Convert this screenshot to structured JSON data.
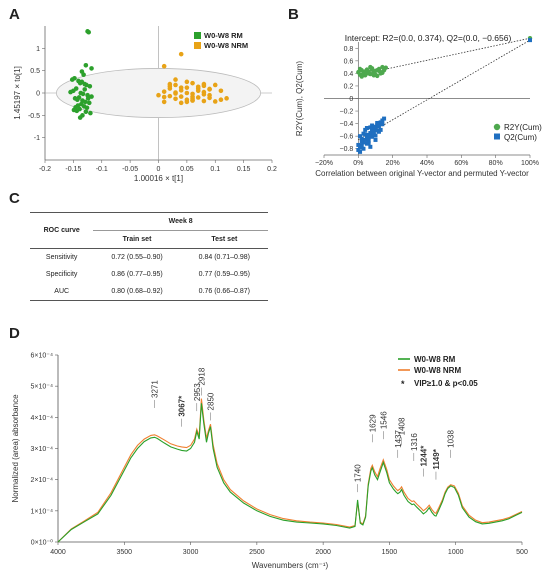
{
  "panel_letters": {
    "a": "A",
    "b": "B",
    "c": "C",
    "d": "D"
  },
  "colors": {
    "rm": "#2ca02c",
    "nrm": "#e8a317",
    "r2": "#4ea84e",
    "q2": "#1f6fc0",
    "ftir_rm": "#2aa02a",
    "ftir_nrm": "#ef7f2f"
  },
  "chart_data": [
    {
      "id": "A",
      "type": "scatter",
      "xlabel": "1.00016 × t[1]",
      "ylabel": "1.45197 × to[1]",
      "xlim": [
        -0.2,
        0.2
      ],
      "ylim": [
        -1.5,
        1.5
      ],
      "xticks": [
        "-0.2",
        "-0.15",
        "-0.1",
        "-0.05",
        "0",
        "0.05",
        "0.1",
        "0.15",
        "0.2"
      ],
      "yticks": [
        "-1",
        "-0.5",
        "0",
        "0.5",
        "1"
      ],
      "legend": "top-right",
      "series": [
        {
          "name": "W0-W8 RM",
          "color": "#2ca02c",
          "x": [
            -0.125,
            -0.123,
            -0.128,
            -0.118,
            -0.135,
            -0.132,
            -0.148,
            -0.152,
            -0.141,
            -0.138,
            -0.13,
            -0.127,
            -0.121,
            -0.145,
            -0.15,
            -0.155,
            -0.137,
            -0.133,
            -0.125,
            -0.118,
            -0.14,
            -0.147,
            -0.143,
            -0.134,
            -0.129,
            -0.122,
            -0.136,
            -0.142,
            -0.131,
            -0.126,
            -0.139,
            -0.149,
            -0.144,
            -0.128,
            -0.12,
            -0.134,
            -0.138,
            -0.146,
            -0.124,
            -0.13,
            -0.135
          ],
          "y": [
            1.38,
            1.36,
            0.62,
            0.55,
            0.48,
            0.41,
            0.33,
            0.3,
            0.27,
            0.22,
            0.2,
            0.18,
            0.15,
            0.1,
            0.05,
            0.02,
            0.0,
            -0.02,
            -0.05,
            -0.08,
            -0.1,
            -0.12,
            -0.15,
            -0.17,
            -0.2,
            -0.22,
            -0.25,
            -0.28,
            -0.3,
            -0.33,
            -0.36,
            -0.38,
            -0.4,
            -0.42,
            -0.45,
            -0.5,
            -0.55,
            -0.32,
            -0.12,
            0.08,
            0.25
          ]
        },
        {
          "name": "W0-W8 NRM",
          "color": "#e8a317",
          "x": [
            0.04,
            0.01,
            0.03,
            0.05,
            0.06,
            0.08,
            0.1,
            0.02,
            0.04,
            0.07,
            0.09,
            0.11,
            0.01,
            0.03,
            0.05,
            0.06,
            0.08,
            0.0,
            0.02,
            0.04,
            0.07,
            0.09,
            0.12,
            0.03,
            0.05,
            0.06,
            0.08,
            0.1,
            0.01,
            0.04,
            0.02,
            0.07,
            0.09,
            0.05,
            0.06,
            0.03,
            0.08,
            0.11,
            0.04,
            0.06,
            0.02,
            0.07,
            0.05,
            0.09,
            0.03,
            0.01,
            0.08,
            0.06
          ],
          "y": [
            0.87,
            0.6,
            0.3,
            0.25,
            0.22,
            0.2,
            0.18,
            0.15,
            0.12,
            0.1,
            0.08,
            0.05,
            0.03,
            0.01,
            0.0,
            -0.02,
            -0.03,
            -0.05,
            -0.07,
            -0.08,
            -0.1,
            -0.11,
            -0.12,
            -0.13,
            -0.15,
            -0.17,
            -0.18,
            -0.19,
            -0.2,
            -0.22,
            0.1,
            0.05,
            -0.05,
            0.12,
            -0.08,
            0.18,
            0.02,
            -0.15,
            0.06,
            -0.12,
            0.2,
            0.14,
            -0.2,
            0.09,
            -0.01,
            -0.09,
            0.16,
            -0.16
          ]
        }
      ]
    },
    {
      "id": "B",
      "type": "scatter",
      "title": "Intercept: R2=(0.0, 0.374), Q2=(0.0, −0.656)",
      "xlabel": "Correlation between original Y-vector and permuted Y-vector",
      "ylabel": "R2Y(Cum), Q2(Cum)",
      "xlim": [
        -0.2,
        1.0
      ],
      "ylim": [
        -0.9,
        0.9
      ],
      "xticks": [
        "−20%",
        "0%",
        "20%",
        "40%",
        "60%",
        "80%",
        "100%"
      ],
      "yticks": [
        "−0.8",
        "−0.6",
        "−0.4",
        "−0.2",
        "0",
        "0.2",
        "0.4",
        "0.6",
        "0.8"
      ],
      "legend": "bottom-right",
      "series": [
        {
          "name": "R2Y(Cum)",
          "color": "#4ea84e",
          "x": [
            0.0,
            0.01,
            0.02,
            0.03,
            0.04,
            0.05,
            0.06,
            0.07,
            0.08,
            0.09,
            0.1,
            0.11,
            0.12,
            0.13,
            0.14,
            0.15,
            0.16,
            0.02,
            0.04,
            0.06,
            0.08,
            0.1,
            0.12,
            0.14,
            0.01,
            0.03,
            0.05,
            0.07,
            0.09,
            0.11,
            0.13,
            1.0
          ],
          "y": [
            0.42,
            0.38,
            0.45,
            0.4,
            0.37,
            0.46,
            0.43,
            0.39,
            0.48,
            0.41,
            0.44,
            0.36,
            0.47,
            0.42,
            0.5,
            0.45,
            0.49,
            0.35,
            0.43,
            0.4,
            0.46,
            0.38,
            0.44,
            0.41,
            0.47,
            0.39,
            0.42,
            0.5,
            0.37,
            0.45,
            0.4,
            0.96
          ]
        },
        {
          "name": "Q2(Cum)",
          "color": "#1f6fc0",
          "x": [
            0.0,
            0.01,
            0.02,
            0.03,
            0.04,
            0.05,
            0.06,
            0.07,
            0.08,
            0.09,
            0.1,
            0.11,
            0.12,
            0.13,
            0.14,
            0.15,
            0.01,
            0.02,
            0.03,
            0.04,
            0.05,
            0.06,
            0.07,
            0.08,
            0.09,
            0.1,
            0.11,
            0.12,
            0.0,
            0.02,
            0.04,
            0.06,
            0.08,
            0.1,
            0.12,
            0.14,
            0.03,
            0.05,
            0.07,
            0.09,
            0.11,
            0.13,
            0.01,
            0.06,
            0.08,
            1.0
          ],
          "y": [
            -0.82,
            -0.78,
            -0.75,
            -0.7,
            -0.66,
            -0.62,
            -0.58,
            -0.55,
            -0.52,
            -0.48,
            -0.45,
            -0.42,
            -0.4,
            -0.38,
            -0.35,
            -0.32,
            -0.6,
            -0.64,
            -0.56,
            -0.5,
            -0.72,
            -0.68,
            -0.46,
            -0.61,
            -0.54,
            -0.59,
            -0.51,
            -0.44,
            -0.74,
            -0.69,
            -0.57,
            -0.63,
            -0.49,
            -0.66,
            -0.53,
            -0.41,
            -0.8,
            -0.47,
            -0.77,
            -0.58,
            -0.39,
            -0.5,
            -0.85,
            -0.71,
            -0.43,
            0.93
          ]
        }
      ]
    },
    {
      "id": "C",
      "type": "table",
      "header": {
        "row_label": "ROC curve",
        "group": "Week 8",
        "col1": "Train set",
        "col2": "Test set"
      },
      "rows": [
        {
          "label": "Sensitivity",
          "train": "0.72 (0.55–0.90)",
          "test": "0.84 (0.71–0.98)"
        },
        {
          "label": "Specificity",
          "train": "0.86 (0.77–0.95)",
          "test": "0.77 (0.59–0.95)"
        },
        {
          "label": "AUC",
          "train": "0.80 (0.68–0.92)",
          "test": "0.76 (0.66–0.87)"
        }
      ]
    },
    {
      "id": "D",
      "type": "line",
      "xlabel": "Wavenumbers (cm⁻¹)",
      "ylabel": "Normalized (area) absorbance",
      "xlim": [
        4000,
        500
      ],
      "ylim": [
        0,
        0.0006
      ],
      "xticks": [
        "4000",
        "3500",
        "3000",
        "2500",
        "2000",
        "1500",
        "1000",
        "500"
      ],
      "yticks": [
        "0×10⁻⁰",
        "1×10⁻⁴",
        "2×10⁻⁴",
        "3×10⁻⁴",
        "4×10⁻⁴",
        "5×10⁻⁴",
        "6×10⁻⁴"
      ],
      "legend": "top-right",
      "legend_note": "VIP≥1.0 & p<0.05",
      "legend_star": "*",
      "peaks": [
        {
          "x": 3271,
          "label": "3271",
          "y": 0.00043,
          "bold": false
        },
        {
          "x": 3067,
          "label": "3067*",
          "y": 0.00037,
          "bold": true
        },
        {
          "x": 2953,
          "label": "2953",
          "y": 0.00042,
          "bold": false
        },
        {
          "x": 2918,
          "label": "2918",
          "y": 0.00047,
          "bold": false
        },
        {
          "x": 2850,
          "label": "2850",
          "y": 0.00039,
          "bold": false
        },
        {
          "x": 1740,
          "label": "1740",
          "y": 0.00016,
          "bold": false
        },
        {
          "x": 1629,
          "label": "1629",
          "y": 0.00032,
          "bold": false
        },
        {
          "x": 1546,
          "label": "1546",
          "y": 0.00033,
          "bold": false
        },
        {
          "x": 1437,
          "label": "1437",
          "y": 0.00027,
          "bold": false
        },
        {
          "x": 1408,
          "label": "1408",
          "y": 0.00031,
          "bold": false
        },
        {
          "x": 1316,
          "label": "1316",
          "y": 0.00026,
          "bold": false
        },
        {
          "x": 1244,
          "label": "1244*",
          "y": 0.00021,
          "bold": true
        },
        {
          "x": 1149,
          "label": "1149*",
          "y": 0.0002,
          "bold": true
        },
        {
          "x": 1038,
          "label": "1038",
          "y": 0.00027,
          "bold": false
        }
      ],
      "x": [
        4000,
        3900,
        3800,
        3700,
        3600,
        3500,
        3450,
        3400,
        3350,
        3300,
        3271,
        3250,
        3200,
        3150,
        3100,
        3067,
        3030,
        3000,
        2970,
        2953,
        2935,
        2918,
        2900,
        2880,
        2865,
        2850,
        2830,
        2800,
        2750,
        2700,
        2600,
        2500,
        2400,
        2300,
        2200,
        2100,
        2000,
        1900,
        1800,
        1760,
        1740,
        1720,
        1700,
        1680,
        1660,
        1640,
        1629,
        1610,
        1590,
        1570,
        1546,
        1520,
        1500,
        1470,
        1450,
        1437,
        1420,
        1408,
        1390,
        1360,
        1330,
        1316,
        1290,
        1260,
        1244,
        1220,
        1200,
        1180,
        1160,
        1149,
        1130,
        1100,
        1080,
        1060,
        1038,
        1010,
        980,
        950,
        900,
        850,
        800,
        750,
        700,
        650,
        600,
        550,
        500
      ],
      "series": [
        {
          "name": "W0-W8 RM",
          "color": "#2aa02a",
          "values": [
            0.0,
            4e-05,
            6.5e-05,
            9e-05,
            0.00015,
            0.00023,
            0.00027,
            0.0003,
            0.000322,
            0.000334,
            0.000336,
            0.000332,
            0.000318,
            0.000305,
            0.000298,
            0.000294,
            0.000292,
            0.0003,
            0.00032,
            0.000355,
            0.00033,
            0.000445,
            0.00038,
            0.00032,
            0.00035,
            0.00037,
            0.0003,
            0.00024,
            0.00019,
            0.00016,
            0.000125,
            0.0001,
            8.2e-05,
            7e-05,
            6.4e-05,
            6.1e-05,
            5.8e-05,
            5.3e-05,
            4.5e-05,
            5e-05,
            0.000135,
            6e-05,
            5.5e-05,
            8e-05,
            0.00018,
            0.000228,
            0.000238,
            0.000215,
            0.0002,
            0.000225,
            0.000255,
            0.000222,
            0.00019,
            0.00017,
            0.00016,
            0.000155,
            0.00016,
            0.000168,
            0.00015,
            0.00013,
            0.00012,
            0.000122,
            0.00011,
            9.8e-05,
            9e-05,
            9.8e-05,
            0.00011,
            9.5e-05,
            8.5e-05,
            8.3e-05,
            0.0001,
            0.00013,
            0.000155,
            0.000172,
            0.00018,
            0.000175,
            0.00015,
            0.00011,
            8e-05,
            6.5e-05,
            5.8e-05,
            6e-05,
            6.4e-05,
            6.8e-05,
            7.4e-05,
            8.5e-05,
            9.5e-05
          ]
        },
        {
          "name": "W0-W8 NRM",
          "color": "#ef7f2f",
          "values": [
            0.0,
            4.2e-05,
            6.8e-05,
            9.5e-05,
            0.000158,
            0.00024,
            0.00028,
            0.00031,
            0.00033,
            0.000342,
            0.000344,
            0.00034,
            0.000328,
            0.000315,
            0.000308,
            0.000305,
            0.000303,
            0.00031,
            0.00033,
            0.000362,
            0.00034,
            0.00046,
            0.000392,
            0.000332,
            0.000358,
            0.000378,
            0.000312,
            0.000252,
            0.0002,
            0.000168,
            0.000132,
            0.000106,
            8.8e-05,
            7.5e-05,
            6.8e-05,
            6.4e-05,
            6.1e-05,
            5.6e-05,
            4.8e-05,
            5.3e-05,
            0.000128,
            6.3e-05,
            5.8e-05,
            8.4e-05,
            0.000186,
            0.000236,
            0.000246,
            0.000225,
            0.00021,
            0.000236,
            0.000264,
            0.000232,
            0.0002,
            0.00018,
            0.00017,
            0.000165,
            0.00017,
            0.000177,
            0.00016,
            0.00014,
            0.00013,
            0.000132,
            0.00012,
            0.000108,
            0.0001,
            0.000108,
            0.000118,
            0.000104,
            9.4e-05,
            9.2e-05,
            0.000108,
            0.000136,
            0.00016,
            0.000176,
            0.000184,
            0.00018,
            0.000156,
            0.000116,
            8.6e-05,
            7e-05,
            6.2e-05,
            6.4e-05,
            6.8e-05,
            7.2e-05,
            7.8e-05,
            8.8e-05,
            9.8e-05
          ]
        }
      ]
    }
  ]
}
